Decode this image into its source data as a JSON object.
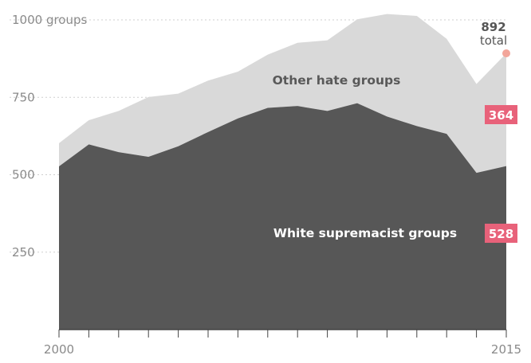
{
  "chart_data": {
    "type": "area",
    "stacked": true,
    "x": [
      2000,
      2001,
      2002,
      2003,
      2004,
      2005,
      2006,
      2007,
      2008,
      2009,
      2010,
      2011,
      2012,
      2013,
      2014,
      2015
    ],
    "series": [
      {
        "name": "White supremacist groups",
        "color": "#575757",
        "values": [
          527,
          598,
          573,
          558,
          592,
          638,
          682,
          716,
          722,
          706,
          731,
          688,
          657,
          632,
          506,
          528
        ]
      },
      {
        "name": "Other hate groups",
        "color": "#d9d9d9",
        "values": [
          75,
          78,
          133,
          193,
          170,
          166,
          151,
          172,
          204,
          228,
          271,
          331,
          356,
          307,
          287,
          364
        ]
      }
    ],
    "totals": [
      602,
      676,
      706,
      751,
      762,
      804,
      833,
      888,
      926,
      934,
      1002,
      1019,
      1013,
      939,
      793,
      892
    ],
    "ylim": [
      0,
      1000
    ],
    "yticks": [
      250,
      500,
      750,
      1000
    ],
    "ytick_labels": [
      "250",
      "500",
      "750",
      "1000 groups"
    ],
    "xtick_labels": [
      "2000",
      "2015"
    ],
    "grid": true,
    "highlight_color": "#e8627a",
    "dot_color": "#f2a59a",
    "annotations": {
      "total_value": "892",
      "total_word": "total",
      "upper_badge": "364",
      "lower_badge": "528"
    }
  }
}
